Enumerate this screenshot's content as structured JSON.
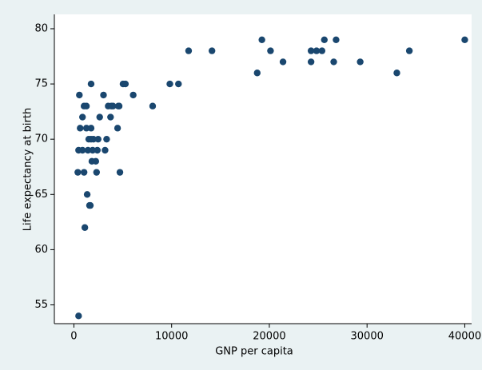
{
  "chart_data": {
    "type": "scatter",
    "xlabel": "GNP per capita",
    "ylabel": "Life expectancy at birth",
    "color": "#1a476f",
    "x": [
      480,
      400,
      480,
      560,
      640,
      880,
      880,
      1040,
      1120,
      1040,
      1280,
      1280,
      1360,
      1440,
      1520,
      1600,
      1680,
      1760,
      1760,
      1760,
      1840,
      1920,
      2000,
      2240,
      2320,
      2400,
      2480,
      2640,
      3030,
      3190,
      3350,
      3510,
      3750,
      3830,
      4000,
      4470,
      4550,
      4710,
      4630,
      5030,
      5270,
      6070,
      8060,
      9820,
      10700,
      11740,
      14130,
      18760,
      19240,
      20120,
      21400,
      24270,
      24270,
      24830,
      25390,
      25630,
      26590,
      26830,
      29300,
      33050,
      34330,
      40000
    ],
    "values": [
      54,
      67,
      69,
      74,
      71,
      72,
      69,
      67,
      62,
      73,
      71,
      73,
      65,
      69,
      70,
      64,
      64,
      75,
      70,
      71,
      68,
      69,
      70,
      68,
      67,
      69,
      70,
      72,
      74,
      69,
      70,
      73,
      72,
      73,
      73,
      71,
      73,
      67,
      73,
      75,
      75,
      74,
      73,
      75,
      75,
      78,
      78,
      76,
      79,
      78,
      77,
      78,
      77,
      78,
      78,
      79,
      77,
      79,
      77,
      76,
      78,
      79
    ],
    "xlim": [
      -2000,
      40700
    ],
    "ylim": [
      53.3,
      81.3
    ],
    "xticks": [
      0,
      10000,
      20000,
      30000,
      40000
    ],
    "yticks": [
      55,
      60,
      65,
      70,
      75,
      80
    ]
  }
}
